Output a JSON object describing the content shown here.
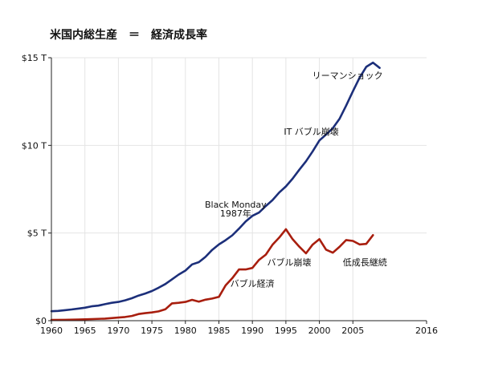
{
  "chart_data": {
    "type": "line",
    "title": "米国内総生産　＝　経済成長率",
    "xlim": [
      1960,
      2016
    ],
    "ylim": [
      0,
      15
    ],
    "grid": true,
    "x_ticks": [
      {
        "value": 1960,
        "label": "1960"
      },
      {
        "value": 1965,
        "label": "1965"
      },
      {
        "value": 1970,
        "label": "1970"
      },
      {
        "value": 1975,
        "label": "1975"
      },
      {
        "value": 1980,
        "label": "1980"
      },
      {
        "value": 1985,
        "label": "1985"
      },
      {
        "value": 1990,
        "label": "1990"
      },
      {
        "value": 1995,
        "label": "1995"
      },
      {
        "value": 2000,
        "label": "2000"
      },
      {
        "value": 2005,
        "label": "2005"
      },
      {
        "value": 2016,
        "label": "2016"
      }
    ],
    "y_ticks": [
      {
        "value": 0,
        "label": "$0"
      },
      {
        "value": 5,
        "label": "$5 T"
      },
      {
        "value": 10,
        "label": "$10 T"
      },
      {
        "value": 15,
        "label": "$15 T"
      }
    ],
    "series": [
      {
        "color": "#1c2f7a",
        "x": [
          1960,
          1961,
          1962,
          1963,
          1964,
          1965,
          1966,
          1967,
          1968,
          1969,
          1970,
          1971,
          1972,
          1973,
          1974,
          1975,
          1976,
          1977,
          1978,
          1979,
          1980,
          1981,
          1982,
          1983,
          1984,
          1985,
          1986,
          1987,
          1988,
          1989,
          1990,
          1991,
          1992,
          1993,
          1994,
          1995,
          1996,
          1997,
          1998,
          1999,
          2000,
          2001,
          2002,
          2003,
          2004,
          2005,
          2006,
          2007,
          2008,
          2009
        ],
        "y": [
          0.54,
          0.56,
          0.6,
          0.64,
          0.69,
          0.74,
          0.82,
          0.86,
          0.94,
          1.02,
          1.07,
          1.16,
          1.28,
          1.43,
          1.55,
          1.69,
          1.88,
          2.09,
          2.36,
          2.63,
          2.86,
          3.21,
          3.34,
          3.64,
          4.04,
          4.35,
          4.59,
          4.87,
          5.25,
          5.66,
          5.98,
          6.17,
          6.54,
          6.88,
          7.31,
          7.66,
          8.1,
          8.61,
          9.09,
          9.66,
          10.28,
          10.62,
          10.98,
          11.51,
          12.27,
          13.09,
          13.86,
          14.48,
          14.72,
          14.42
        ]
      },
      {
        "color": "#a81e0e",
        "x": [
          1960,
          1962,
          1964,
          1966,
          1968,
          1970,
          1971,
          1972,
          1973,
          1974,
          1975,
          1976,
          1977,
          1978,
          1979,
          1980,
          1981,
          1982,
          1983,
          1984,
          1985,
          1986,
          1987,
          1988,
          1989,
          1990,
          1991,
          1992,
          1993,
          1994,
          1995,
          1996,
          1997,
          1998,
          1999,
          2000,
          2001,
          2002,
          2003,
          2004,
          2005,
          2006,
          2007,
          2008
        ],
        "y": [
          0.04,
          0.05,
          0.07,
          0.09,
          0.12,
          0.18,
          0.21,
          0.27,
          0.38,
          0.43,
          0.47,
          0.53,
          0.65,
          0.99,
          1.02,
          1.07,
          1.19,
          1.09,
          1.2,
          1.26,
          1.36,
          2.01,
          2.43,
          2.92,
          2.92,
          3.01,
          3.47,
          3.77,
          4.33,
          4.74,
          5.22,
          4.65,
          4.22,
          3.84,
          4.34,
          4.65,
          4.05,
          3.88,
          4.21,
          4.6,
          4.55,
          4.35,
          4.38,
          4.88
        ]
      }
    ],
    "annotations": [
      {
        "text": "リーマンショック",
        "x": 2004.2,
        "y": 13.8
      },
      {
        "text": "IT バブル崩壊",
        "x": 1998.8,
        "y": 10.6
      },
      {
        "text": "Black Monday",
        "x": 1987.5,
        "y": 6.45
      },
      {
        "text": "1987年",
        "x": 1987.5,
        "y": 5.95
      },
      {
        "text": "バブル崩壊",
        "x": 1995.5,
        "y": 3.15
      },
      {
        "text": "低成長継続",
        "x": 2006.8,
        "y": 3.15
      },
      {
        "text": "バブル経済",
        "x": 1990.0,
        "y": 1.95
      }
    ]
  }
}
